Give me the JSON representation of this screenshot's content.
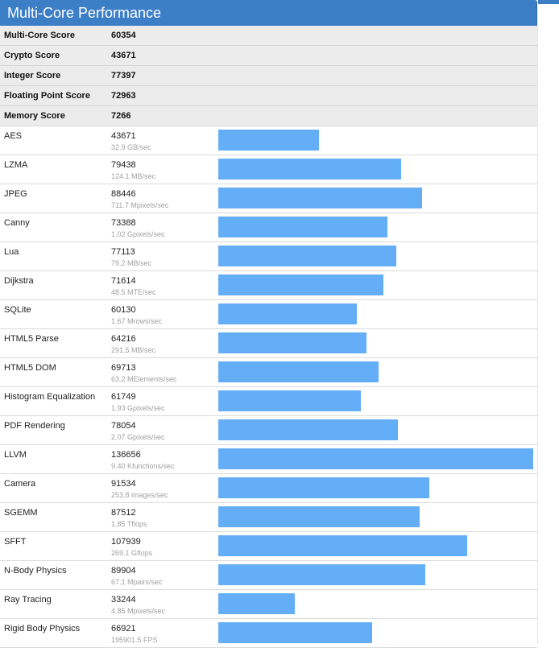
{
  "header": {
    "title": "Multi-Core Performance"
  },
  "summary": [
    {
      "label": "Multi-Core Score",
      "value": "60354"
    },
    {
      "label": "Crypto Score",
      "value": "43671"
    },
    {
      "label": "Integer Score",
      "value": "77397"
    },
    {
      "label": "Floating Point Score",
      "value": "72963"
    },
    {
      "label": "Memory Score",
      "value": "7266"
    }
  ],
  "bar_max_score": 136656,
  "accent_color": "#3d7fc7",
  "bar_color": "#64adf7",
  "benchmarks": [
    {
      "name": "AES",
      "score": "43671",
      "rate": "32.9 GB/sec"
    },
    {
      "name": "LZMA",
      "score": "79438",
      "rate": "124.1 MB/sec"
    },
    {
      "name": "JPEG",
      "score": "88446",
      "rate": "711.7 Mpixels/sec"
    },
    {
      "name": "Canny",
      "score": "73388",
      "rate": "1.02 Gpixels/sec"
    },
    {
      "name": "Lua",
      "score": "77113",
      "rate": "79.2 MB/sec"
    },
    {
      "name": "Dijkstra",
      "score": "71614",
      "rate": "48.5 MTE/sec"
    },
    {
      "name": "SQLite",
      "score": "60130",
      "rate": "1.67 Mrows/sec"
    },
    {
      "name": "HTML5 Parse",
      "score": "64216",
      "rate": "291.5 MB/sec"
    },
    {
      "name": "HTML5 DOM",
      "score": "69713",
      "rate": "63.2 MElements/sec"
    },
    {
      "name": "Histogram Equalization",
      "score": "61749",
      "rate": "1.93 Gpixels/sec"
    },
    {
      "name": "PDF Rendering",
      "score": "78054",
      "rate": "2.07 Gpixels/sec"
    },
    {
      "name": "LLVM",
      "score": "136656",
      "rate": "9.40 Kfunctions/sec"
    },
    {
      "name": "Camera",
      "score": "91534",
      "rate": "253.8 images/sec"
    },
    {
      "name": "SGEMM",
      "score": "87512",
      "rate": "1.85 Tflops"
    },
    {
      "name": "SFFT",
      "score": "107939",
      "rate": "269.1 Gflops"
    },
    {
      "name": "N-Body Physics",
      "score": "89904",
      "rate": "67.1 Mpairs/sec"
    },
    {
      "name": "Ray Tracing",
      "score": "33244",
      "rate": "4.85 Mpixels/sec"
    },
    {
      "name": "Rigid Body Physics",
      "score": "66921",
      "rate": "195901.5 FPS"
    }
  ]
}
